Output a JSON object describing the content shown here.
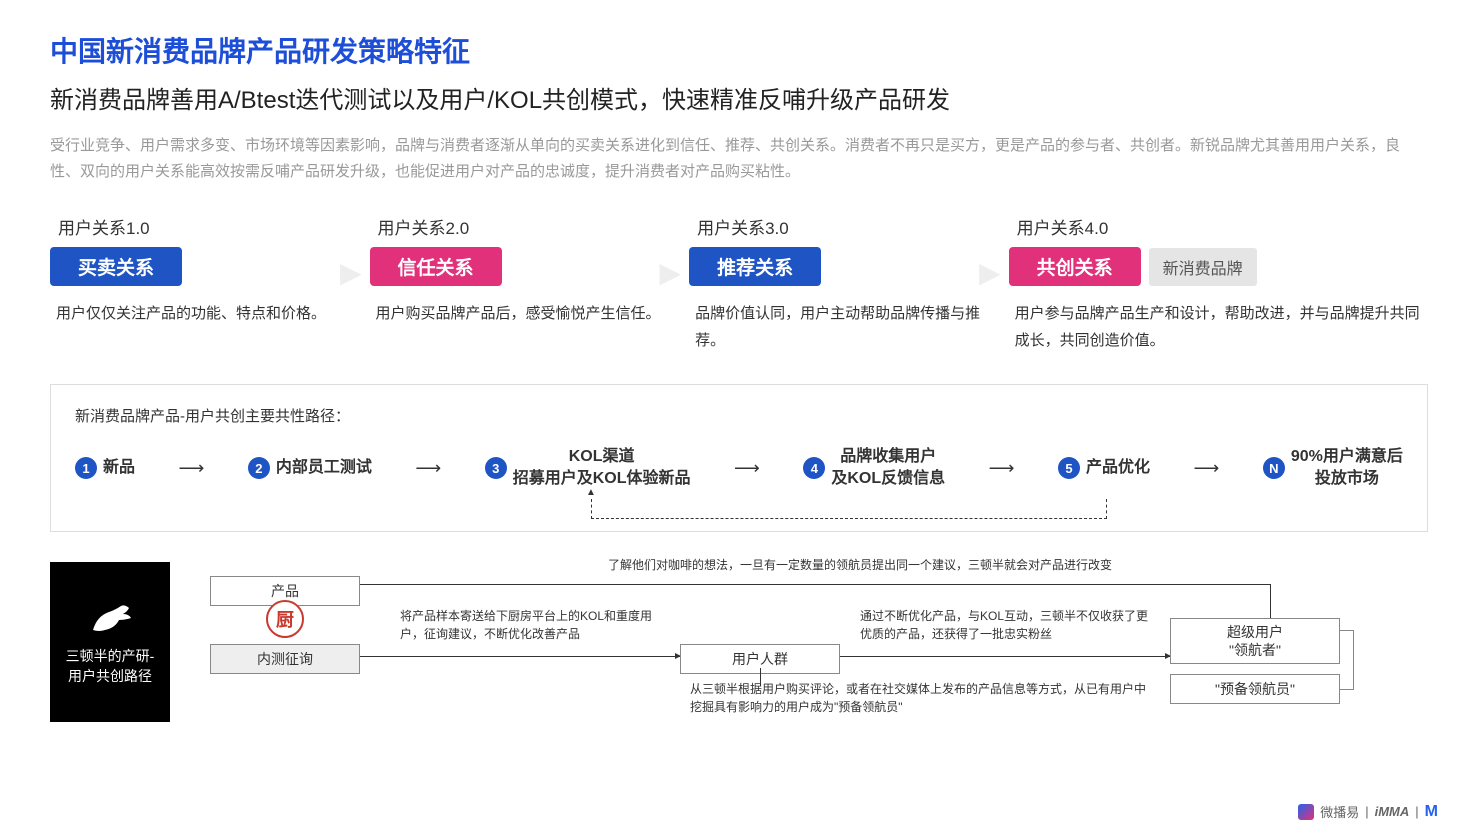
{
  "colors": {
    "title_blue": "#1d4ed8",
    "badge_blue": "#1e54c4",
    "badge_red": "#e0317a",
    "gray_badge": "#e5e5e5",
    "text_gray": "#999999",
    "border_gray": "#dddddd",
    "black": "#000000",
    "chef_red": "#c83a2e"
  },
  "header": {
    "title": "中国新消费品牌产品研发策略特征",
    "subtitle": "新消费品牌善用A/Btest迭代测试以及用户/KOL共创模式，快速精准反哺升级产品研发",
    "paragraph": "受行业竞争、用户需求多变、市场环境等因素影响，品牌与消费者逐渐从单向的买卖关系进化到信任、推荐、共创关系。消费者不再只是买方，更是产品的参与者、共创者。新锐品牌尤其善用用户关系，良性、双向的用户关系能高效按需反哺产品研发升级，也能促进用户对产品的忠诚度，提升消费者对产品购买粘性。"
  },
  "stages": [
    {
      "level": "用户关系1.0",
      "badge": "买卖关系",
      "badge_color": "#1e54c4",
      "desc": "用户仅仅关注产品的功能、特点和价格。",
      "extra": null
    },
    {
      "level": "用户关系2.0",
      "badge": "信任关系",
      "badge_color": "#e0317a",
      "desc": "用户购买品牌产品后，感受愉悦产生信任。",
      "extra": null
    },
    {
      "level": "用户关系3.0",
      "badge": "推荐关系",
      "badge_color": "#1e54c4",
      "desc": "品牌价值认同，用户主动帮助品牌传播与推荐。",
      "extra": null
    },
    {
      "level": "用户关系4.0",
      "badge": "共创关系",
      "badge_color": "#e0317a",
      "desc": "用户参与品牌产品生产和设计，帮助改进，并与品牌提升共同成长，共同创造价值。",
      "extra": "新消费品牌"
    }
  ],
  "flowbox": {
    "title": "新消费品牌产品-用户共创主要共性路径：",
    "steps": [
      {
        "num": "1",
        "num_bg": "#1e54c4",
        "label": "新品"
      },
      {
        "num": "2",
        "num_bg": "#1e54c4",
        "label": "内部员工测试"
      },
      {
        "num": "3",
        "num_bg": "#1e54c4",
        "label": "KOL渠道\n招募用户及KOL体验新品"
      },
      {
        "num": "4",
        "num_bg": "#1e54c4",
        "label": "品牌收集用户\n及KOL反馈信息"
      },
      {
        "num": "5",
        "num_bg": "#1e54c4",
        "label": "产品优化"
      },
      {
        "num": "N",
        "num_bg": "#1e54c4",
        "label": "90%用户满意后\n投放市场"
      }
    ]
  },
  "casestudy": {
    "brand_label": "三顿半的产研-用户共创路径",
    "nodes": {
      "product": "产品",
      "internal": "内测征询",
      "users": "用户人群",
      "super": "超级用户\n\"领航者\"",
      "reserve": "\"预备领航员\"",
      "chef": "厨"
    },
    "annotations": {
      "top": "了解他们对咖啡的想法，一旦有一定数量的领航员提出同一个建议，三顿半就会对产品进行改变",
      "left": "将产品样本寄送给下厨房平台上的KOL和重度用户，征询建议，不断优化改善产品",
      "right": "通过不断优化产品，与KOL互动，三顿半不仅收获了更优质的产品，还获得了一批忠实粉丝",
      "bottom": "从三顿半根据用户购买评论，或者在社交媒体上发布的产品信息等方式，从已有用户中挖掘具有影响力的用户成为\"预备领航员\""
    }
  },
  "footer": {
    "brand1": "微播易",
    "brand2": "iMMA",
    "brand3": "M"
  }
}
